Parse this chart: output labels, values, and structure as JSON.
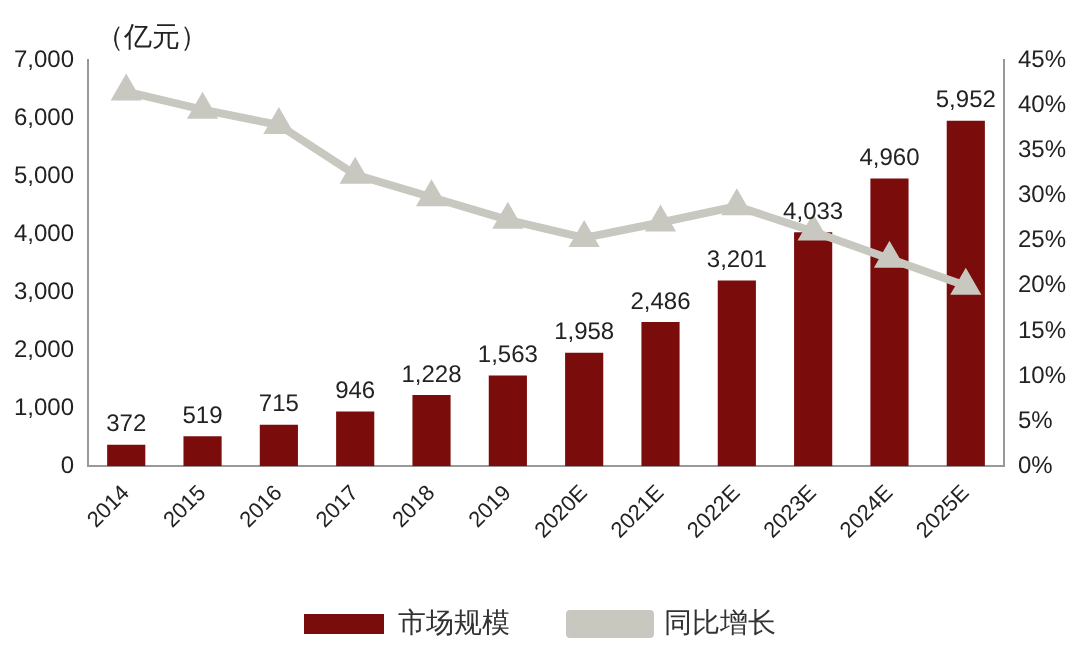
{
  "chart_data": {
    "type": "bar",
    "ylabel": "（亿元）",
    "categories": [
      "2014",
      "2015",
      "2016",
      "2017",
      "2018",
      "2019",
      "2020E",
      "2021E",
      "2022E",
      "2023E",
      "2024E",
      "2025E"
    ],
    "series": [
      {
        "name": "市场规模",
        "color": "#7b0c0c",
        "values": [
          372,
          519,
          715,
          946,
          1228,
          1563,
          1958,
          2486,
          3201,
          4033,
          4960,
          5952
        ],
        "value_labels": [
          "372",
          "519",
          "715",
          "946",
          "1,228",
          "1,563",
          "1,958",
          "2,486",
          "3,201",
          "4,033",
          "4,960",
          "5,952"
        ]
      },
      {
        "name": "同比增长",
        "type": "line",
        "axis": "y2",
        "color": "#c8c8c0",
        "marker": "triangle",
        "values": [
          41.5,
          39.5,
          37.8,
          32.3,
          29.8,
          27.3,
          25.3,
          27.0,
          28.8,
          26.0,
          23.0,
          20.0
        ]
      }
    ],
    "ylim": [
      0,
      7000
    ],
    "yticks": [
      0,
      {
        "value": 1000,
        "label": "1,000"
      },
      {
        "value": 2000,
        "label": "2,000"
      },
      {
        "value": 3000,
        "label": "3,000"
      },
      {
        "value": 4000,
        "label": "4,000"
      },
      {
        "value": 5000,
        "label": "5,000"
      },
      {
        "value": 6000,
        "label": "6,000"
      },
      {
        "value": 7000,
        "label": "7,000"
      }
    ],
    "y2lim": [
      0,
      45
    ],
    "y2ticks": [
      {
        "value": 0,
        "label": "0%"
      },
      {
        "value": 5,
        "label": "5%"
      },
      {
        "value": 10,
        "label": "10%"
      },
      {
        "value": 15,
        "label": "15%"
      },
      {
        "value": 20,
        "label": "20%"
      },
      {
        "value": 25,
        "label": "25%"
      },
      {
        "value": 30,
        "label": "30%"
      },
      {
        "value": 35,
        "label": "35%"
      },
      {
        "value": 40,
        "label": "40%"
      },
      {
        "value": 45,
        "label": "45%"
      }
    ],
    "grid": false,
    "legend": "bottom"
  }
}
